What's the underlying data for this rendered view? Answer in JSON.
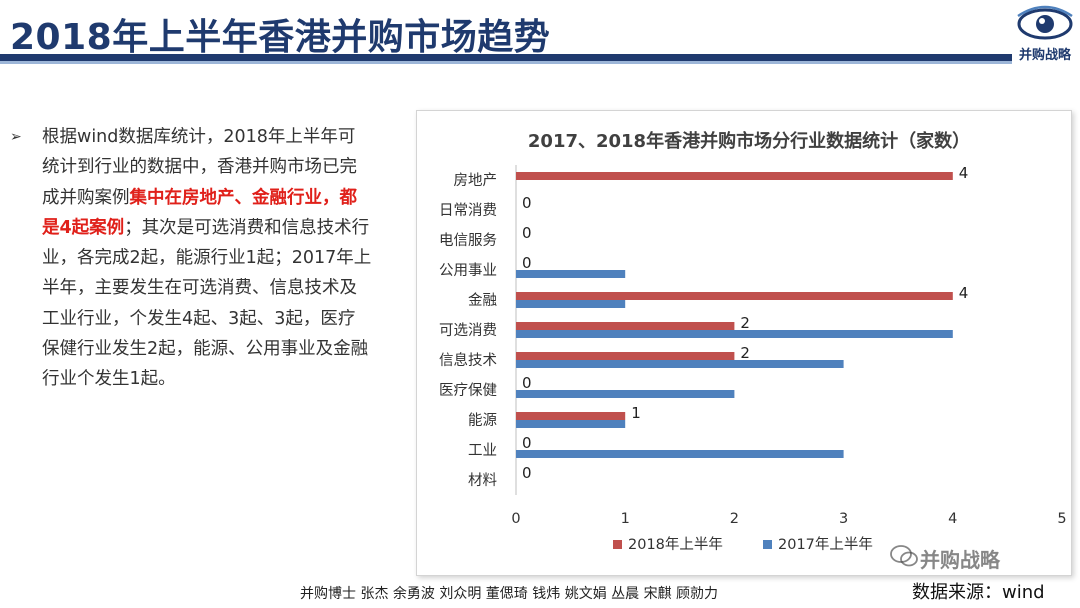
{
  "header": {
    "title": "2018年上半年香港并购市场趋势",
    "logo_text": "并购战略"
  },
  "bullet": {
    "text_before": "根据wind数据库统计，2018年上半年可统计到行业的数据中，香港并购市场已完成并购案例",
    "highlight": "集中在房地产、金融行业，都是4起案例",
    "text_after": "；其次是可选消费和信息技术行业，各完成2起，能源行业1起；2017年上半年，主要发生在可选消费、信息技术及工业行业，个发生4起、3起、3起，医疗保健行业发生2起，能源、公用事业及金融行业个发生1起。"
  },
  "chart_data": {
    "type": "bar",
    "orientation": "horizontal",
    "title": "2017、2018年香港并购市场分行业数据统计（家数）",
    "categories": [
      "房地产",
      "日常消费",
      "电信服务",
      "公用事业",
      "金融",
      "可选消费",
      "信息技术",
      "医疗保健",
      "能源",
      "工业",
      "材料"
    ],
    "series": [
      {
        "name": "2018年上半年",
        "color": "#c0504d",
        "values": [
          4,
          0,
          0,
          0,
          4,
          2,
          2,
          0,
          1,
          0,
          0
        ]
      },
      {
        "name": "2017年上半年",
        "color": "#4f81bd",
        "values": [
          0,
          0,
          0,
          1,
          1,
          4,
          3,
          2,
          1,
          3,
          0
        ]
      }
    ],
    "data_labels_series": "2018年上半年",
    "xlim": [
      0,
      5
    ],
    "xticks": [
      "0",
      "1",
      "2",
      "3",
      "4",
      "5"
    ],
    "grid": false,
    "legend_position": "bottom"
  },
  "footer": {
    "authors": "并购博士 张杰 余勇波 刘众明 董偲琦 钱炜 姚文娟 丛晨 宋麒 顾勍力",
    "source": "数据来源：wind",
    "watermark": "并购战略"
  },
  "colors": {
    "title": "#1f3a6e",
    "highlight": "#e0201a"
  }
}
